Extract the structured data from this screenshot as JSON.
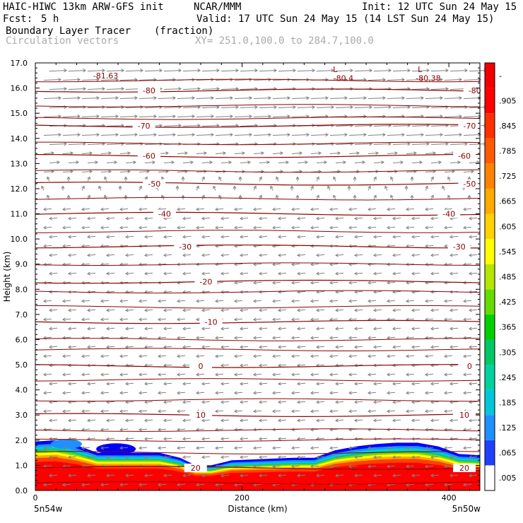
{
  "header": {
    "model": "HAIC-HIWC 13km ARW-GFS init",
    "org": "NCAR/MMM",
    "init": "Init: 12 UTC Sun 24 May 15",
    "fcst_label": "Fcst:",
    "fcst_value": "5 h",
    "valid": "Valid: 17 UTC Sun 24 May 15 (14 LST Sun 24 May 15)",
    "field": "Boundary Layer Tracer",
    "field_units": "(fraction)",
    "vectors": "Circulation vectors",
    "xy": "XY= 251.0,100.0 to 284.7,100.0"
  },
  "colors": {
    "contour": "#8b0000",
    "vector": "#808080",
    "ramp": [
      "#ffffff",
      "#0000ff",
      "#1e90ff",
      "#00ced1",
      "#00c88c",
      "#00c800",
      "#7cd800",
      "#c8e600",
      "#ffff00",
      "#ffd700",
      "#ffa500",
      "#ff7800",
      "#ff4000",
      "#ff0000",
      "#e60000"
    ]
  },
  "chart_data": {
    "type": "heatmap",
    "title": "Boundary Layer Tracer (fraction)",
    "xlabel": "Distance (km)",
    "ylabel": "Height (km)",
    "xlim": [
      0,
      430
    ],
    "ylim": [
      0,
      17
    ],
    "x_ticks": [
      0,
      200,
      400
    ],
    "x_end_labels": [
      "5n54w",
      "5n50w"
    ],
    "y_ticks": [
      "0.0",
      "1.0",
      "2.0",
      "3.0",
      "4.0",
      "5.0",
      "6.0",
      "7.0",
      "8.0",
      "9.0",
      "10.0",
      "11.0",
      "12.0",
      "13.0",
      "14.0",
      "15.0",
      "16.0",
      "17.0"
    ],
    "colorbar_labels": [
      ".005",
      ".065",
      ".125",
      ".185",
      ".245",
      ".305",
      ".365",
      ".425",
      ".485",
      ".545",
      ".605",
      ".665",
      ".725",
      ".785",
      ".845",
      ".905",
      "-"
    ],
    "contours": [
      {
        "label": "20",
        "height": 0.9,
        "label_x": [
          155,
          415
        ]
      },
      {
        "label": "10",
        "height": 3.0,
        "label_x": [
          160,
          415
        ]
      },
      {
        "label": "0",
        "height": 4.95,
        "label_x": [
          160,
          420
        ]
      },
      {
        "label": "-10",
        "height": 6.7,
        "label_x": [
          170
        ]
      },
      {
        "label": "-20",
        "height": 8.3,
        "label_x": [
          165
        ]
      },
      {
        "label": "-30",
        "height": 9.7,
        "label_x": [
          145,
          410
        ]
      },
      {
        "label": "-40",
        "height": 11.0,
        "label_x": [
          125,
          400
        ]
      },
      {
        "label": "-50",
        "height": 12.2,
        "label_x": [
          115,
          420
        ]
      },
      {
        "label": "-60",
        "height": 13.3,
        "label_x": [
          110,
          415
        ]
      },
      {
        "label": "-70",
        "height": 14.5,
        "label_x": [
          105,
          420
        ]
      },
      {
        "label": "-80",
        "height": 15.9,
        "label_x": [
          110,
          425
        ]
      }
    ],
    "extremum_labels": [
      {
        "label": "-81.63",
        "x": 68,
        "y": 16.5
      },
      {
        "label": "-80.4",
        "x": 298,
        "y": 16.4
      },
      {
        "label": "-80.38",
        "x": 380,
        "y": 16.4
      },
      {
        "label": "L",
        "x": 290,
        "y": 16.75
      },
      {
        "label": "L",
        "x": 372,
        "y": 16.75
      }
    ],
    "tracer_top_km": [
      [
        0,
        1.95
      ],
      [
        20,
        2.0
      ],
      [
        40,
        1.8
      ],
      [
        60,
        1.5
      ],
      [
        80,
        1.5
      ],
      [
        100,
        1.5
      ],
      [
        120,
        1.5
      ],
      [
        140,
        1.3
      ],
      [
        155,
        1.0
      ],
      [
        170,
        1.0
      ],
      [
        190,
        1.2
      ],
      [
        220,
        1.25
      ],
      [
        250,
        1.3
      ],
      [
        270,
        1.3
      ],
      [
        290,
        1.6
      ],
      [
        310,
        1.75
      ],
      [
        330,
        1.85
      ],
      [
        350,
        1.9
      ],
      [
        370,
        1.9
      ],
      [
        390,
        1.75
      ],
      [
        410,
        1.45
      ],
      [
        430,
        1.4
      ]
    ]
  }
}
